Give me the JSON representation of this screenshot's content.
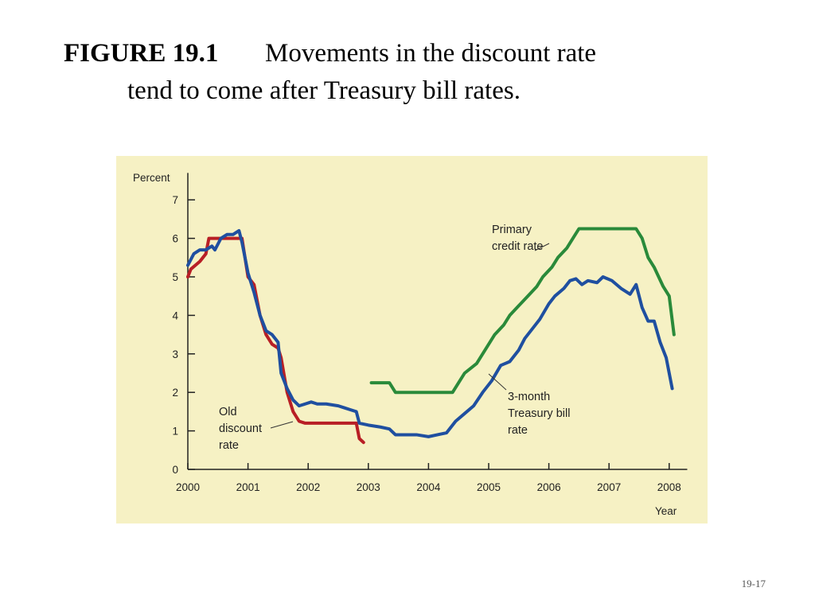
{
  "slide": {
    "figure_label": "FIGURE 19.1",
    "caption_lines": [
      "Movements in the discount rate",
      "tend to come after Treasury bill rates."
    ],
    "page_number": "19-17"
  },
  "chart_data": {
    "type": "line",
    "y_label": "Percent",
    "x_label": "Year",
    "xlim": [
      2000,
      2008.3
    ],
    "ylim": [
      0,
      7.7
    ],
    "xticks": [
      2000,
      2001,
      2002,
      2003,
      2004,
      2005,
      2006,
      2007,
      2008
    ],
    "yticks": [
      0,
      1,
      2,
      3,
      4,
      5,
      6,
      7
    ],
    "background": "#f6f1c4",
    "annotations": [
      {
        "lines": [
          "Old",
          "discount",
          "rate"
        ]
      },
      {
        "lines": [
          "Primary",
          "credit rate"
        ]
      },
      {
        "lines": [
          "3-month",
          "Treasury bill",
          "rate"
        ]
      }
    ],
    "series": [
      {
        "name": "Old discount rate",
        "color": "#b81f25",
        "x": [
          2000.0,
          2000.05,
          2000.2,
          2000.3,
          2000.35,
          2000.9,
          2001.0,
          2001.1,
          2001.2,
          2001.3,
          2001.4,
          2001.5,
          2001.55,
          2001.65,
          2001.75,
          2001.85,
          2001.95,
          2002.8,
          2002.85,
          2002.92
        ],
        "values": [
          5.0,
          5.2,
          5.4,
          5.6,
          6.0,
          6.0,
          5.0,
          4.8,
          4.0,
          3.5,
          3.25,
          3.15,
          2.9,
          2.0,
          1.5,
          1.25,
          1.2,
          1.2,
          0.8,
          0.7
        ]
      },
      {
        "name": "Primary credit rate",
        "color": "#2a8a3a",
        "x": [
          2003.05,
          2003.35,
          2003.45,
          2004.4,
          2004.5,
          2004.6,
          2004.8,
          2005.0,
          2005.1,
          2005.25,
          2005.35,
          2005.5,
          2005.65,
          2005.8,
          2005.9,
          2006.05,
          2006.15,
          2006.3,
          2006.4,
          2006.5,
          2007.45,
          2007.55,
          2007.65,
          2007.75,
          2007.9,
          2008.0,
          2008.08
        ],
        "values": [
          2.25,
          2.25,
          2.0,
          2.0,
          2.25,
          2.5,
          2.75,
          3.25,
          3.5,
          3.75,
          4.0,
          4.25,
          4.5,
          4.75,
          5.0,
          5.25,
          5.5,
          5.75,
          6.0,
          6.25,
          6.25,
          6.0,
          5.5,
          5.25,
          4.75,
          4.5,
          3.5
        ]
      },
      {
        "name": "3-month Treasury bill rate",
        "color": "#1f4fa0",
        "x": [
          2000.0,
          2000.1,
          2000.2,
          2000.3,
          2000.4,
          2000.45,
          2000.55,
          2000.65,
          2000.75,
          2000.85,
          2000.9,
          2001.0,
          2001.1,
          2001.2,
          2001.3,
          2001.4,
          2001.5,
          2001.55,
          2001.65,
          2001.75,
          2001.85,
          2001.95,
          2002.05,
          2002.15,
          2002.3,
          2002.5,
          2002.6,
          2002.7,
          2002.8,
          2002.85,
          2003.0,
          2003.2,
          2003.35,
          2003.45,
          2003.6,
          2003.8,
          2004.0,
          2004.15,
          2004.3,
          2004.45,
          2004.6,
          2004.75,
          2004.9,
          2005.05,
          2005.2,
          2005.35,
          2005.5,
          2005.6,
          2005.75,
          2005.85,
          2006.0,
          2006.1,
          2006.25,
          2006.35,
          2006.45,
          2006.55,
          2006.65,
          2006.8,
          2006.9,
          2007.05,
          2007.2,
          2007.35,
          2007.45,
          2007.55,
          2007.65,
          2007.75,
          2007.85,
          2007.95,
          2008.05
        ],
        "values": [
          5.3,
          5.6,
          5.7,
          5.7,
          5.8,
          5.7,
          6.0,
          6.1,
          6.1,
          6.2,
          5.9,
          5.1,
          4.6,
          4.0,
          3.6,
          3.5,
          3.3,
          2.5,
          2.1,
          1.8,
          1.65,
          1.7,
          1.75,
          1.7,
          1.7,
          1.65,
          1.6,
          1.55,
          1.5,
          1.2,
          1.15,
          1.1,
          1.05,
          0.9,
          0.9,
          0.9,
          0.85,
          0.9,
          0.95,
          1.25,
          1.45,
          1.65,
          2.0,
          2.3,
          2.7,
          2.8,
          3.1,
          3.4,
          3.7,
          3.9,
          4.3,
          4.5,
          4.7,
          4.9,
          4.95,
          4.8,
          4.9,
          4.85,
          5.0,
          4.9,
          4.7,
          4.55,
          4.8,
          4.2,
          3.85,
          3.85,
          3.3,
          2.9,
          2.1
        ]
      }
    ]
  }
}
